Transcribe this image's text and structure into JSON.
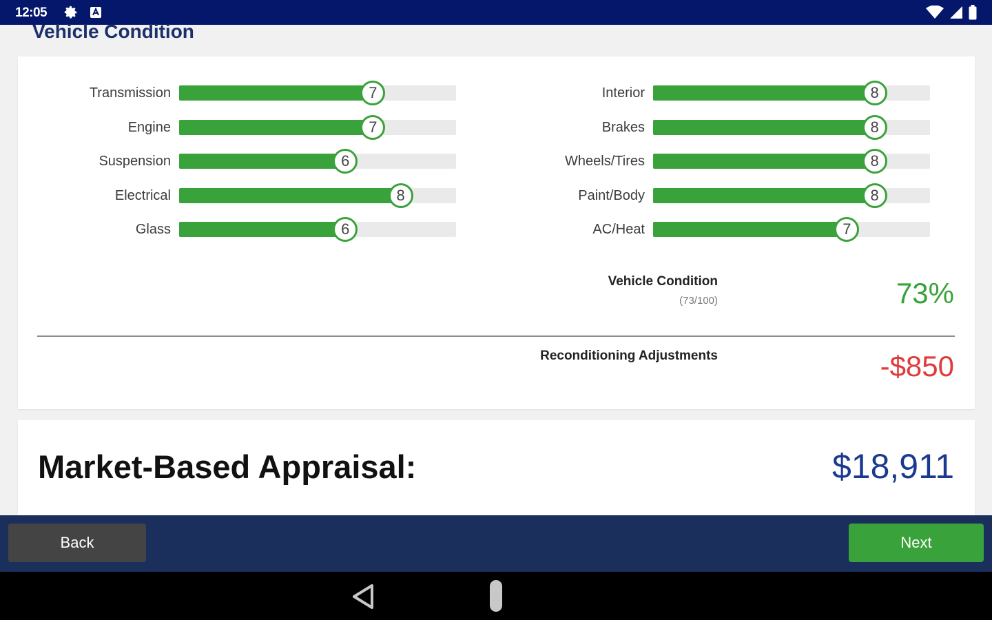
{
  "status_bar": {
    "time": "12:05"
  },
  "page": {
    "title": "Vehicle Condition"
  },
  "ratings_left": [
    {
      "label": "Transmission",
      "value": 7
    },
    {
      "label": "Engine",
      "value": 7
    },
    {
      "label": "Suspension",
      "value": 6
    },
    {
      "label": "Electrical",
      "value": 8
    },
    {
      "label": "Glass",
      "value": 6
    }
  ],
  "ratings_right": [
    {
      "label": "Interior",
      "value": 8
    },
    {
      "label": "Brakes",
      "value": 8
    },
    {
      "label": "Wheels/Tires",
      "value": 8
    },
    {
      "label": "Paint/Body",
      "value": 8
    },
    {
      "label": "AC/Heat",
      "value": 7
    }
  ],
  "rating_max": 10,
  "summary": {
    "condition_label": "Vehicle Condition",
    "condition_score": "(73/100)",
    "condition_percent": "73%",
    "recon_label": "Reconditioning Adjustments",
    "recon_value": "-$850"
  },
  "appraisal": {
    "label": "Market-Based Appraisal:",
    "value": "$18,911"
  },
  "actions": {
    "back_label": "Back",
    "next_label": "Next"
  },
  "colors": {
    "status_bar": "#04176b",
    "accent_green": "#3aa23a",
    "negative_red": "#e03a3a",
    "appraisal_blue": "#1b3a8f",
    "action_bar": "#1b2f5c"
  },
  "icons": {
    "status_left": [
      "gear-icon",
      "notification-icon"
    ],
    "status_right": [
      "wifi-icon",
      "cell-signal-icon",
      "battery-icon"
    ],
    "nav": [
      "nav-back-icon",
      "nav-home-pill"
    ]
  }
}
